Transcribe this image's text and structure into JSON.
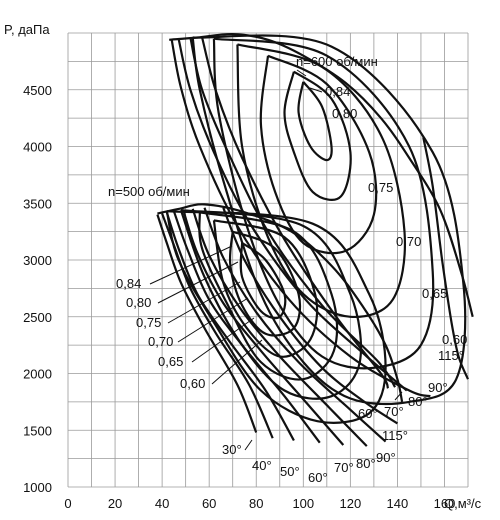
{
  "chart_data": {
    "type": "line",
    "title": "",
    "xlabel": "Q,м³/с",
    "ylabel": "P, даПа",
    "xlim": [
      0,
      170
    ],
    "ylim": [
      1000,
      5000
    ],
    "grid": true,
    "x_ticks": [
      "0",
      "20",
      "40",
      "60",
      "80",
      "100",
      "120",
      "140",
      "160"
    ],
    "y_ticks": [
      "1000",
      "1500",
      "2000",
      "2500",
      "3000",
      "3500",
      "4000",
      "4500"
    ],
    "fans": [
      {
        "speed_label": "n=600 об/мин",
        "head_curve": [
          [
            43,
            4940
          ],
          [
            55,
            4960
          ],
          [
            70,
            4990
          ],
          [
            85,
            4940
          ],
          [
            100,
            4800
          ],
          [
            118,
            4560
          ],
          [
            133,
            4250
          ],
          [
            145,
            3900
          ],
          [
            158,
            3450
          ],
          [
            167,
            2900
          ],
          [
            172,
            2500
          ]
        ],
        "efficiency_contours": [
          {
            "label": "0,84",
            "points": [
              [
                100,
                4570
              ],
              [
                108,
                4350
              ],
              [
                112,
                4000
              ],
              [
                110,
                3880
              ],
              [
                103,
                4000
              ],
              [
                98,
                4300
              ],
              [
                100,
                4570
              ]
            ]
          },
          {
            "label": "0,80",
            "points": [
              [
                96,
                4660
              ],
              [
                112,
                4420
              ],
              [
                120,
                3950
              ],
              [
                116,
                3560
              ],
              [
                104,
                3600
              ],
              [
                96,
                3950
              ],
              [
                92,
                4300
              ],
              [
                96,
                4660
              ]
            ]
          },
          {
            "label": "0,75",
            "points": [
              [
                85,
                4800
              ],
              [
                110,
                4550
              ],
              [
                128,
                3950
              ],
              [
                130,
                3400
              ],
              [
                118,
                3080
              ],
              [
                100,
                3150
              ],
              [
                88,
                3600
              ],
              [
                82,
                4200
              ],
              [
                85,
                4800
              ]
            ]
          },
          {
            "label": "0,70",
            "points": [
              [
                72,
                4900
              ],
              [
                108,
                4700
              ],
              [
                133,
                4100
              ],
              [
                143,
                3250
              ],
              [
                138,
                2650
              ],
              [
                120,
                2500
              ],
              [
                100,
                2700
              ],
              [
                85,
                3200
              ],
              [
                74,
                4000
              ],
              [
                72,
                4900
              ]
            ]
          },
          {
            "label": "0,65",
            "points": [
              [
                62,
                4950
              ],
              [
                110,
                4800
              ],
              [
                145,
                4000
              ],
              [
                155,
                2900
              ],
              [
                150,
                2250
              ],
              [
                130,
                2050
              ],
              [
                108,
                2150
              ],
              [
                90,
                2600
              ],
              [
                76,
                3300
              ],
              [
                64,
                4300
              ],
              [
                62,
                4950
              ]
            ]
          },
          {
            "label": "0,60",
            "points": [
              [
                53,
                4960
              ],
              [
                112,
                4880
              ],
              [
                155,
                3950
              ],
              [
                168,
                2800
              ],
              [
                165,
                1950
              ],
              [
                145,
                1750
              ],
              [
                120,
                1780
              ],
              [
                100,
                2100
              ],
              [
                82,
                2700
              ],
              [
                66,
                3700
              ],
              [
                56,
                4500
              ],
              [
                53,
                4960
              ]
            ]
          }
        ],
        "blade_angle_curves": [
          {
            "label": "90°",
            "points": [
              [
                44,
                4950
              ],
              [
                48,
                4520
              ],
              [
                56,
                4000
              ],
              [
                72,
                3300
              ],
              [
                94,
                2650
              ],
              [
                120,
                2150
              ],
              [
                145,
                1850
              ],
              [
                154,
                1800
              ]
            ]
          },
          {
            "label": "80°",
            "points": [
              [
                47,
                4950
              ],
              [
                52,
                4500
              ],
              [
                62,
                3950
              ],
              [
                78,
                3300
              ],
              [
                101,
                2650
              ],
              [
                127,
                2150
              ],
              [
                144,
                1850
              ]
            ]
          },
          {
            "label": "70°",
            "points": [
              [
                52,
                4960
              ],
              [
                57,
                4500
              ],
              [
                68,
                3950
              ],
              [
                85,
                3250
              ],
              [
                108,
                2600
              ],
              [
                132,
                2100
              ],
              [
                139,
                1880
              ]
            ]
          },
          {
            "label": "60°",
            "points": [
              [
                57,
                4960
              ],
              [
                63,
                4480
              ],
              [
                74,
                3900
              ],
              [
                92,
                3180
              ],
              [
                114,
                2500
              ],
              [
                133,
                2000
              ],
              [
                136,
                1870
              ]
            ]
          },
          {
            "label": "115°",
            "points": [
              [
                151,
                4080
              ],
              [
                155,
                3650
              ],
              [
                159,
                3000
              ],
              [
                163,
                2450
              ],
              [
                166,
                2150
              ],
              [
                170,
                1950
              ]
            ]
          }
        ],
        "labels": {
          "speed": "n=600 об/мин",
          "eff_084": "0,84",
          "eff_080": "0,80",
          "eff_075": "0,75",
          "eff_070": "0,70",
          "eff_065": "0,65",
          "eff_060": "0,60",
          "ang_115": "115°",
          "ang_90": "90°",
          "ang_80": "80°",
          "ang_70": "70°",
          "ang_60": "60°"
        }
      },
      {
        "speed_label": "n=500 об/мин",
        "head_curve": [
          [
            38,
            3410
          ],
          [
            47,
            3450
          ],
          [
            58,
            3490
          ],
          [
            75,
            3420
          ],
          [
            95,
            3250
          ],
          [
            112,
            2950
          ],
          [
            125,
            2600
          ],
          [
            135,
            2250
          ],
          [
            140,
            1950
          ],
          [
            142,
            1750
          ]
        ],
        "efficiency_contours": [
          {
            "label": "0,84",
            "points": [
              [
                74,
                3150
              ],
              [
                84,
                3000
              ],
              [
                92,
                2700
              ],
              [
                90,
                2500
              ],
              [
                82,
                2550
              ],
              [
                74,
                2850
              ],
              [
                74,
                3150
              ]
            ]
          },
          {
            "label": "0,80",
            "points": [
              [
                70,
                3250
              ],
              [
                88,
                3100
              ],
              [
                98,
                2700
              ],
              [
                96,
                2400
              ],
              [
                84,
                2350
              ],
              [
                74,
                2600
              ],
              [
                69,
                2950
              ],
              [
                70,
                3250
              ]
            ]
          },
          {
            "label": "0,75",
            "points": [
              [
                62,
                3350
              ],
              [
                92,
                3200
              ],
              [
                105,
                2700
              ],
              [
                103,
                2300
              ],
              [
                90,
                2150
              ],
              [
                76,
                2400
              ],
              [
                66,
                2800
              ],
              [
                62,
                3350
              ]
            ]
          },
          {
            "label": "0,70",
            "points": [
              [
                56,
                3420
              ],
              [
                96,
                3250
              ],
              [
                112,
                2700
              ],
              [
                113,
                2200
              ],
              [
                100,
                1950
              ],
              [
                82,
                2100
              ],
              [
                68,
                2600
              ],
              [
                57,
                3100
              ],
              [
                56,
                3420
              ]
            ]
          },
          {
            "label": "0,65",
            "points": [
              [
                48,
                3440
              ],
              [
                100,
                3300
              ],
              [
                120,
                2700
              ],
              [
                124,
                2100
              ],
              [
                112,
                1800
              ],
              [
                92,
                1850
              ],
              [
                74,
                2250
              ],
              [
                58,
                2850
              ],
              [
                48,
                3440
              ]
            ]
          },
          {
            "label": "0,60",
            "points": [
              [
                42,
                3430
              ],
              [
                104,
                3320
              ],
              [
                128,
                2700
              ],
              [
                135,
                2050
              ],
              [
                128,
                1650
              ],
              [
                106,
                1580
              ],
              [
                82,
                1850
              ],
              [
                62,
                2450
              ],
              [
                47,
                3000
              ],
              [
                42,
                3430
              ]
            ]
          }
        ],
        "blade_angle_curves": [
          {
            "label": "30°",
            "points": [
              [
                38,
                3400
              ],
              [
                42,
                3150
              ],
              [
                48,
                2800
              ],
              [
                58,
                2400
              ],
              [
                72,
                1900
              ],
              [
                80,
                1480
              ]
            ]
          },
          {
            "label": "40°",
            "points": [
              [
                40,
                3410
              ],
              [
                45,
                3130
              ],
              [
                52,
                2750
              ],
              [
                63,
                2350
              ],
              [
                77,
                1900
              ],
              [
                87,
                1430
              ]
            ]
          },
          {
            "label": "50°",
            "points": [
              [
                42,
                3420
              ],
              [
                47,
                3100
              ],
              [
                55,
                2700
              ],
              [
                68,
                2300
              ],
              [
                84,
                1850
              ],
              [
                96,
                1410
              ]
            ]
          },
          {
            "label": "60°",
            "points": [
              [
                45,
                3430
              ],
              [
                51,
                3080
              ],
              [
                60,
                2650
              ],
              [
                74,
                2250
              ],
              [
                92,
                1800
              ],
              [
                107,
                1390
              ]
            ]
          },
          {
            "label": "70°",
            "points": [
              [
                49,
                3440
              ],
              [
                55,
                3060
              ],
              [
                66,
                2620
              ],
              [
                82,
                2200
              ],
              [
                101,
                1750
              ],
              [
                117,
                1370
              ]
            ]
          },
          {
            "label": "80°",
            "points": [
              [
                53,
                3450
              ],
              [
                60,
                3040
              ],
              [
                73,
                2580
              ],
              [
                90,
                2150
              ],
              [
                111,
                1700
              ],
              [
                127,
                1360
              ]
            ]
          },
          {
            "label": "90°",
            "points": [
              [
                58,
                3460
              ],
              [
                66,
                3020
              ],
              [
                80,
                2540
              ],
              [
                98,
                2100
              ],
              [
                120,
                1680
              ],
              [
                135,
                1400
              ]
            ]
          },
          {
            "label": "115°",
            "points": [
              [
                66,
                3460
              ],
              [
                75,
                3000
              ],
              [
                90,
                2500
              ],
              [
                108,
                2050
              ],
              [
                126,
                1750
              ],
              [
                140,
                1560
              ]
            ]
          }
        ],
        "labels": {
          "speed": "n=500 об/мин",
          "eff_084": "0,84",
          "eff_080": "0,80",
          "eff_075": "0,75",
          "eff_070": "0,70",
          "eff_065": "0,65",
          "eff_060": "0,60",
          "ang_30": "30°",
          "ang_40": "40°",
          "ang_50": "50°",
          "ang_60": "60°",
          "ang_70": "70°",
          "ang_80": "80°",
          "ang_90": "90°",
          "ang_115": "115°"
        }
      }
    ]
  }
}
